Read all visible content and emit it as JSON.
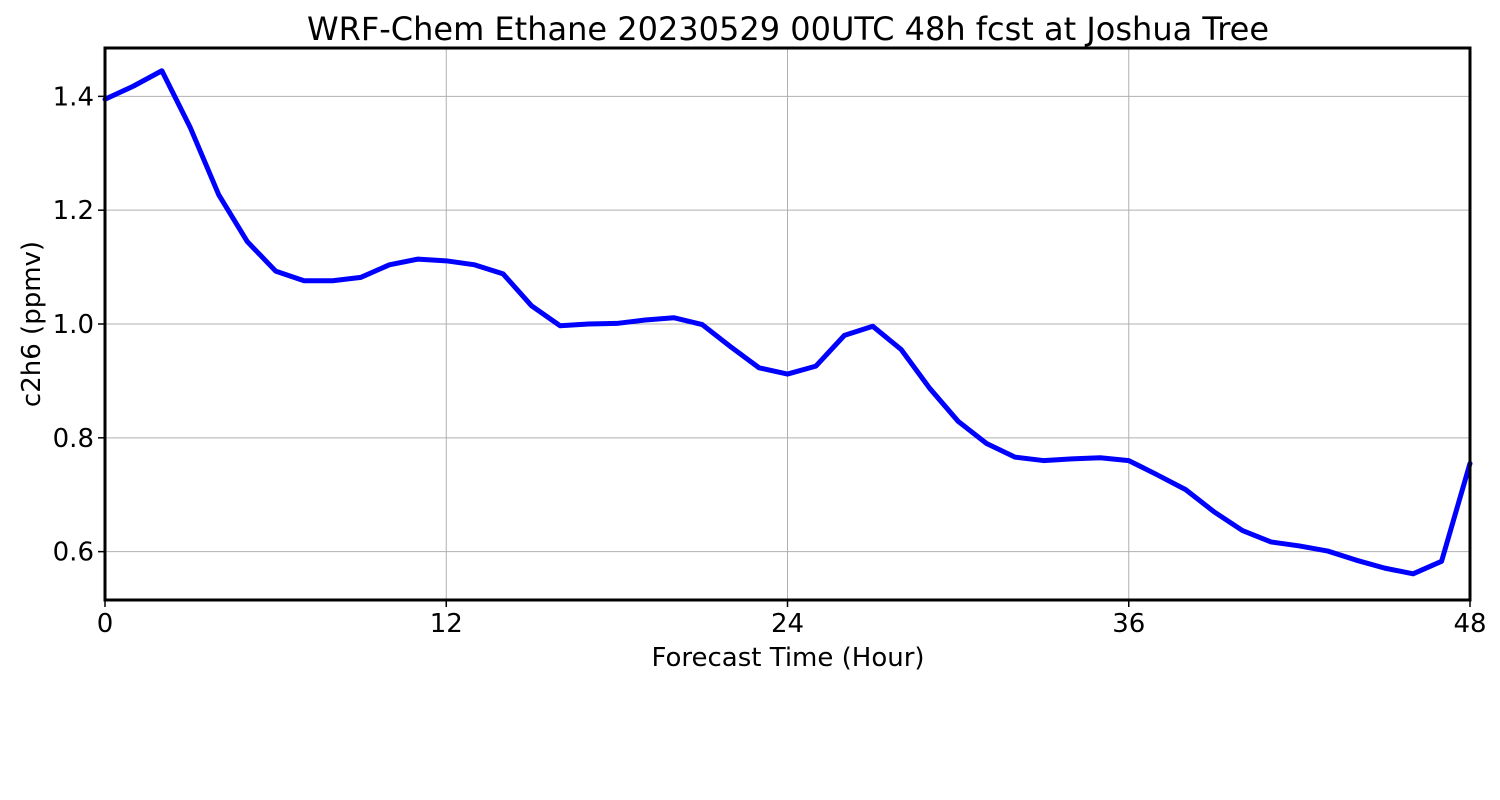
{
  "colors": {
    "background": "#ffffff",
    "series": "#0000ff",
    "grid": "#b0b0b0",
    "axes": "#000000"
  },
  "chart_data": {
    "type": "line",
    "title": "WRF-Chem Ethane  20230529 00UTC 48h fcst at Joshua Tree",
    "xlabel": "Forecast Time (Hour)",
    "ylabel": "c2h6  (ppmv)",
    "xlim": [
      0,
      48
    ],
    "ylim": [
      0.515,
      1.485
    ],
    "xticks": [
      0,
      12,
      24,
      36,
      48
    ],
    "xtick_labels": [
      "0",
      "12",
      "24",
      "36",
      "48"
    ],
    "yticks": [
      0.6,
      0.8,
      1.0,
      1.2,
      1.4
    ],
    "ytick_labels": [
      "0.6",
      "0.8",
      "1.0",
      "1.2",
      "1.4"
    ],
    "grid": true,
    "series": [
      {
        "color": "#0000ff",
        "x": [
          0,
          1,
          2,
          3,
          4,
          5,
          6,
          7,
          8,
          9,
          10,
          11,
          12,
          13,
          14,
          15,
          16,
          17,
          18,
          19,
          20,
          21,
          22,
          23,
          24,
          25,
          26,
          27,
          28,
          29,
          30,
          31,
          32,
          33,
          34,
          35,
          36,
          37,
          38,
          39,
          40,
          41,
          42,
          43,
          44,
          45,
          46,
          47,
          48
        ],
        "y": [
          1.395,
          1.418,
          1.445,
          1.345,
          1.227,
          1.145,
          1.093,
          1.076,
          1.076,
          1.082,
          1.104,
          1.114,
          1.111,
          1.104,
          1.088,
          1.032,
          0.997,
          1.0,
          1.001,
          1.007,
          1.011,
          0.999,
          0.96,
          0.923,
          0.912,
          0.926,
          0.98,
          0.996,
          0.955,
          0.887,
          0.829,
          0.79,
          0.766,
          0.76,
          0.763,
          0.765,
          0.76,
          0.735,
          0.709,
          0.67,
          0.637,
          0.617,
          0.61,
          0.601,
          0.585,
          0.571,
          0.561,
          0.583,
          0.755
        ]
      }
    ]
  }
}
